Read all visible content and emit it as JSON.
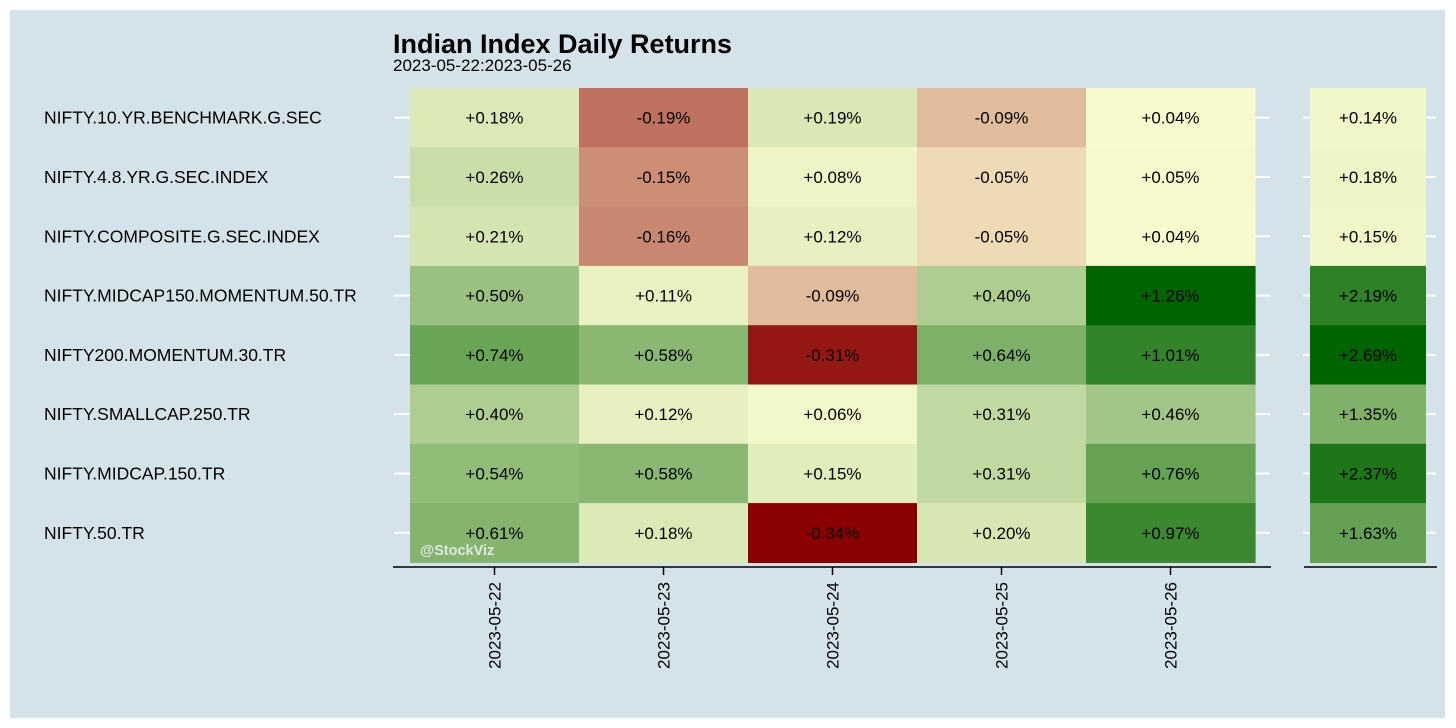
{
  "chart_data": {
    "type": "heatmap",
    "title": "Indian Index Daily Returns",
    "subtitle": "2023-05-22:2023-05-26",
    "watermark": "@StockViz",
    "rows": [
      "NIFTY.10.YR.BENCHMARK.G.SEC",
      "NIFTY.4.8.YR.G.SEC.INDEX",
      "NIFTY.COMPOSITE.G.SEC.INDEX",
      "NIFTY.MIDCAP150.MOMENTUM.50.TR",
      "NIFTY200.MOMENTUM.30.TR",
      "NIFTY.SMALLCAP.250.TR",
      "NIFTY.MIDCAP.150.TR",
      "NIFTY.50.TR"
    ],
    "columns": [
      "2023-05-22",
      "2023-05-23",
      "2023-05-24",
      "2023-05-25",
      "2023-05-26"
    ],
    "values": [
      [
        0.18,
        -0.19,
        0.19,
        -0.09,
        0.04
      ],
      [
        0.26,
        -0.15,
        0.08,
        -0.05,
        0.05
      ],
      [
        0.21,
        -0.16,
        0.12,
        -0.05,
        0.04
      ],
      [
        0.5,
        0.11,
        -0.09,
        0.4,
        1.26
      ],
      [
        0.74,
        0.58,
        -0.31,
        0.64,
        1.01
      ],
      [
        0.4,
        0.12,
        0.06,
        0.31,
        0.46
      ],
      [
        0.54,
        0.58,
        0.15,
        0.31,
        0.76
      ],
      [
        0.61,
        0.18,
        -0.34,
        0.2,
        0.97
      ]
    ],
    "labels": [
      [
        "+0.18%",
        "-0.19%",
        "+0.19%",
        "-0.09%",
        "+0.04%"
      ],
      [
        "+0.26%",
        "-0.15%",
        "+0.08%",
        "-0.05%",
        "+0.05%"
      ],
      [
        "+0.21%",
        "-0.16%",
        "+0.12%",
        "-0.05%",
        "+0.04%"
      ],
      [
        "+0.50%",
        "+0.11%",
        "-0.09%",
        "+0.40%",
        "+1.26%"
      ],
      [
        "+0.74%",
        "+0.58%",
        "-0.31%",
        "+0.64%",
        "+1.01%"
      ],
      [
        "+0.40%",
        "+0.12%",
        "+0.06%",
        "+0.31%",
        "+0.46%"
      ],
      [
        "+0.54%",
        "+0.58%",
        "+0.15%",
        "+0.31%",
        "+0.76%"
      ],
      [
        "+0.61%",
        "+0.18%",
        "-0.34%",
        "+0.20%",
        "+0.97%"
      ]
    ],
    "totals": [
      0.14,
      0.18,
      0.15,
      2.19,
      2.69,
      1.35,
      2.37,
      1.63
    ],
    "total_labels": [
      "+0.14%",
      "+0.18%",
      "+0.15%",
      "+2.19%",
      "+2.69%",
      "+1.35%",
      "+2.37%",
      "+1.63%"
    ],
    "colors": {
      "background": "#d4e3ea",
      "negative": "#8b0000",
      "mid": "#ffffd4",
      "positive": "#006400",
      "gridline": "#ffffff",
      "axis": "#000000"
    }
  }
}
